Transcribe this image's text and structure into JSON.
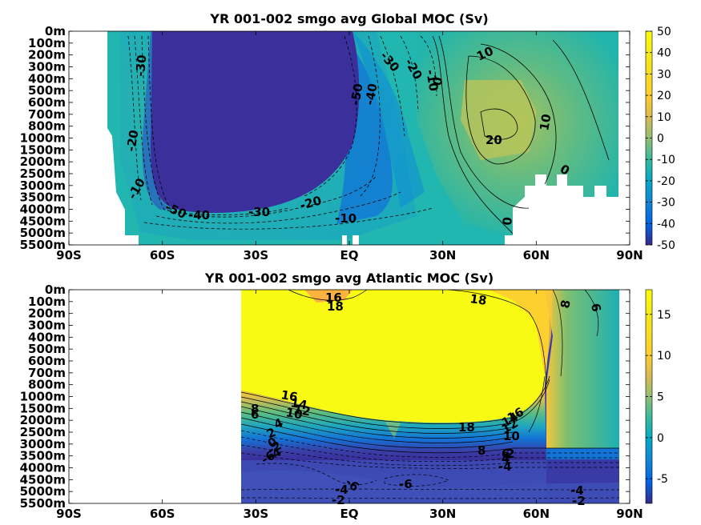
{
  "chart_data": [
    {
      "type": "heatmap",
      "title": "YR 001-002 smgo avg  Global MOC (Sv)",
      "x_ticks": [
        "90S",
        "60S",
        "30S",
        "EQ",
        "30N",
        "60N",
        "90N"
      ],
      "y_ticks": [
        "0m",
        "100m",
        "200m",
        "300m",
        "400m",
        "500m",
        "600m",
        "700m",
        "800m",
        "1000m",
        "1500m",
        "2000m",
        "2500m",
        "3000m",
        "3500m",
        "4000m",
        "4500m",
        "5000m",
        "5500m"
      ],
      "colorbar_ticks": [
        "50",
        "40",
        "30",
        "20",
        "10",
        "0",
        "-10",
        "-20",
        "-30",
        "-40",
        "-50"
      ],
      "clim": [
        -50,
        50
      ],
      "contour_labels": [
        "-30",
        "-20",
        "-10",
        "-50",
        "-40",
        "-30",
        "-20",
        "-10",
        "-50",
        "-40",
        "-30",
        "-20",
        "-10",
        "0",
        "10",
        "20",
        "10",
        "0",
        "0"
      ]
    },
    {
      "type": "heatmap",
      "title": "YR 001-002 smgo avg  Atlantic MOC (Sv)",
      "x_ticks": [
        "90S",
        "60S",
        "30S",
        "EQ",
        "30N",
        "60N",
        "90N"
      ],
      "y_ticks": [
        "0m",
        "100m",
        "200m",
        "300m",
        "400m",
        "500m",
        "600m",
        "700m",
        "800m",
        "1000m",
        "1500m",
        "2000m",
        "2500m",
        "3000m",
        "3500m",
        "4000m",
        "4500m",
        "5000m",
        "5500m"
      ],
      "colorbar_ticks": [
        "15",
        "10",
        "5",
        "0",
        "-5"
      ],
      "clim": [
        -8,
        18
      ],
      "contour_labels": [
        "16",
        "18",
        "18",
        "8",
        "6",
        "16",
        "14",
        "12",
        "10",
        "8",
        "6",
        "4",
        "2",
        "0",
        "-2",
        "-4",
        "-6",
        "18",
        "16",
        "14",
        "12",
        "10",
        "8",
        "6",
        "4",
        "2",
        "-4",
        "-6",
        "-6",
        "-4",
        "-2",
        "-4",
        "-2"
      ]
    }
  ],
  "colors": {
    "ocean_teal": "#21b6b0",
    "dark_purple": "#3a2f9b",
    "yellow": "#f9fa14",
    "land": "#ffffff"
  }
}
